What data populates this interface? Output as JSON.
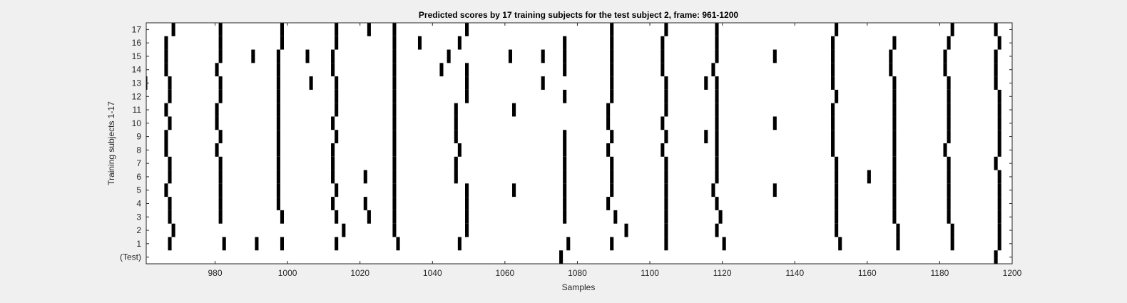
{
  "chart_data": {
    "type": "raster",
    "title": "Predicted scores by 17 training subjects for the test subject 2, frame: 961-1200",
    "xlabel": "Samples",
    "ylabel": "Training subjects 1-17",
    "xlim": [
      961,
      1200
    ],
    "xticks": [
      980,
      1000,
      1020,
      1040,
      1060,
      1080,
      1100,
      1120,
      1140,
      1160,
      1180,
      1200
    ],
    "rows": [
      "(Test)",
      "1",
      "2",
      "3",
      "4",
      "5",
      "6",
      "7",
      "8",
      "9",
      "10",
      "11",
      "12",
      "13",
      "14",
      "15",
      "16",
      "17"
    ],
    "colors": {
      "mark": "#000000",
      "plot_bg": "#ffffff",
      "figure_bg": "#f0f0f0",
      "axis": "#262626"
    },
    "grid": false,
    "series": [
      {
        "row": "(Test)",
        "x": [
          1076,
          1196
        ]
      },
      {
        "row": "1",
        "x": [
          968,
          983,
          992,
          999,
          1014,
          1031,
          1048,
          1078,
          1090,
          1105,
          1121,
          1153,
          1169,
          1184,
          1197
        ]
      },
      {
        "row": "2",
        "x": [
          969,
          1016,
          1030,
          1050,
          1094,
          1105,
          1119,
          1152,
          1169,
          1184,
          1197
        ]
      },
      {
        "row": "3",
        "x": [
          968,
          982,
          999,
          1014,
          1023,
          1030,
          1050,
          1077,
          1091,
          1105,
          1120,
          1152,
          1168,
          1183,
          1197
        ]
      },
      {
        "row": "4",
        "x": [
          968,
          982,
          998,
          1013,
          1022,
          1030,
          1050,
          1077,
          1089,
          1105,
          1119,
          1152,
          1168,
          1183,
          1197
        ]
      },
      {
        "row": "5",
        "x": [
          967,
          982,
          998,
          1014,
          1030,
          1050,
          1063,
          1077,
          1090,
          1105,
          1118,
          1135,
          1152,
          1168,
          1183,
          1197
        ]
      },
      {
        "row": "6",
        "x": [
          968,
          982,
          998,
          1013,
          1022,
          1030,
          1047,
          1077,
          1090,
          1105,
          1119,
          1152,
          1161,
          1168,
          1183,
          1197
        ]
      },
      {
        "row": "7",
        "x": [
          968,
          982,
          998,
          1013,
          1030,
          1047,
          1077,
          1090,
          1105,
          1119,
          1152,
          1168,
          1183,
          1196
        ]
      },
      {
        "row": "8",
        "x": [
          967,
          981,
          998,
          1013,
          1030,
          1048,
          1077,
          1089,
          1104,
          1119,
          1151,
          1168,
          1182,
          1197
        ]
      },
      {
        "row": "9",
        "x": [
          967,
          982,
          998,
          1014,
          1030,
          1047,
          1077,
          1090,
          1105,
          1116,
          1119,
          1151,
          1168,
          1183,
          1197
        ]
      },
      {
        "row": "10",
        "x": [
          968,
          981,
          998,
          1013,
          1030,
          1047,
          1089,
          1104,
          1119,
          1135,
          1151,
          1168,
          1183,
          1197
        ]
      },
      {
        "row": "11",
        "x": [
          967,
          981,
          998,
          1014,
          1030,
          1047,
          1063,
          1089,
          1105,
          1119,
          1151,
          1168,
          1183,
          1197
        ]
      },
      {
        "row": "12",
        "x": [
          968,
          982,
          998,
          1014,
          1030,
          1050,
          1077,
          1090,
          1105,
          1119,
          1152,
          1168,
          1183,
          1197
        ]
      },
      {
        "row": "13",
        "x": [
          961,
          968,
          982,
          998,
          1007,
          1014,
          1030,
          1050,
          1071,
          1090,
          1105,
          1116,
          1119,
          1151,
          1168,
          1183,
          1196
        ]
      },
      {
        "row": "14",
        "x": [
          967,
          981,
          998,
          1013,
          1030,
          1043,
          1050,
          1077,
          1090,
          1104,
          1118,
          1151,
          1167,
          1182,
          1196
        ]
      },
      {
        "row": "15",
        "x": [
          967,
          982,
          991,
          998,
          1006,
          1013,
          1030,
          1045,
          1062,
          1071,
          1077,
          1090,
          1104,
          1119,
          1135,
          1151,
          1167,
          1182,
          1196
        ]
      },
      {
        "row": "16",
        "x": [
          967,
          982,
          999,
          1014,
          1030,
          1037,
          1048,
          1077,
          1090,
          1104,
          1119,
          1151,
          1168,
          1183,
          1197
        ]
      },
      {
        "row": "17",
        "x": [
          969,
          982,
          999,
          1014,
          1023,
          1030,
          1050,
          1090,
          1105,
          1119,
          1152,
          1184,
          1196
        ]
      }
    ]
  }
}
